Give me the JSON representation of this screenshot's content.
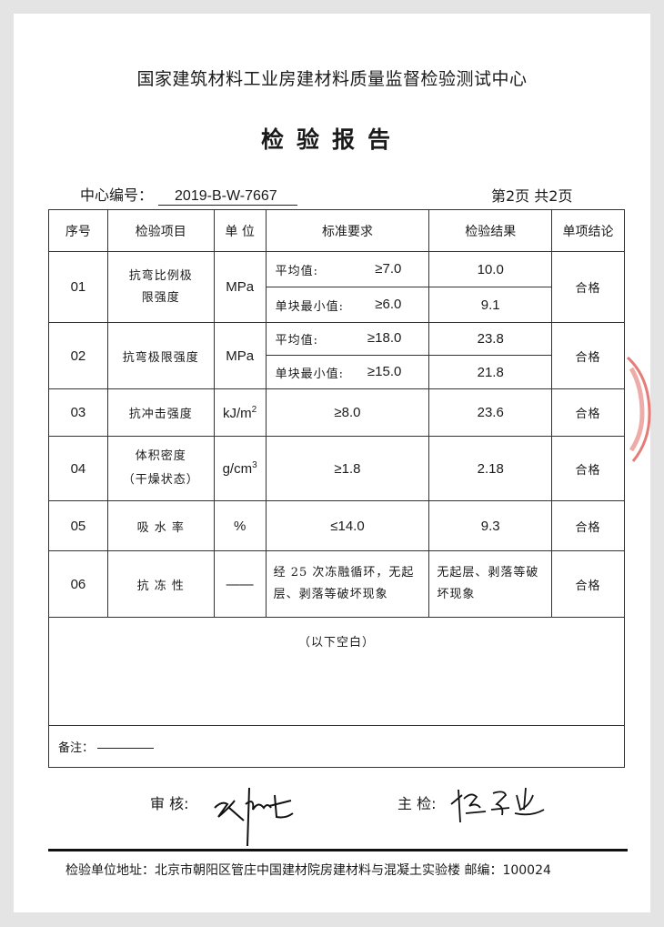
{
  "header": {
    "organization": "国家建筑材料工业房建材料质量监督检验测试中心",
    "title": "检验报告",
    "center_no_label": "中心编号：",
    "center_no": "2019-B-W-7667",
    "page_info": "第2页 共2页"
  },
  "table": {
    "columns": [
      "序号",
      "检验项目",
      "单 位",
      "标准要求",
      "检验结果",
      "单项结论"
    ],
    "rows": [
      {
        "no": "01",
        "item": "抗弯比例极限强度",
        "unit": "MPa",
        "subrows": [
          {
            "std_label": "平均值:",
            "std_value": "≥7.0",
            "result": "10.0"
          },
          {
            "std_label": "单块最小值:",
            "std_value": "≥6.0",
            "result": "9.1"
          }
        ],
        "conclusion": "合格"
      },
      {
        "no": "02",
        "item": "抗弯极限强度",
        "unit": "MPa",
        "subrows": [
          {
            "std_label": "平均值:",
            "std_value": "≥18.0",
            "result": "23.8"
          },
          {
            "std_label": "单块最小值:",
            "std_value": "≥15.0",
            "result": "21.8"
          }
        ],
        "conclusion": "合格"
      },
      {
        "no": "03",
        "item": "抗冲击强度",
        "unit": "kJ/m",
        "unit_sup": "2",
        "std": "≥8.0",
        "result": "23.6",
        "conclusion": "合格"
      },
      {
        "no": "04",
        "item": "体积密度",
        "item_note": "（干燥状态）",
        "unit": "g/cm",
        "unit_sup": "3",
        "std": "≥1.8",
        "result": "2.18",
        "conclusion": "合格"
      },
      {
        "no": "05",
        "item": "吸 水 率",
        "unit": "%",
        "std": "≤14.0",
        "result": "9.3",
        "conclusion": "合格"
      },
      {
        "no": "06",
        "item": "抗 冻 性",
        "unit": "——",
        "std": "经 25 次冻融循环，无起层、剥落等破坏现象",
        "result": "无起层、剥落等破坏现象",
        "conclusion": "合格"
      }
    ],
    "blank_note": "（以下空白）",
    "remarks_label": "备注："
  },
  "signatures": {
    "reviewer_label": "审  核:",
    "inspector_label": "主  检:"
  },
  "footer": {
    "address": "检验单位地址：北京市朝阳区管庄中国建材院房建材料与混凝土实验楼  邮编：100024"
  },
  "colors": {
    "text": "#1a1a1a",
    "stamp": "#d9463f",
    "background": "#e4e4e4"
  }
}
